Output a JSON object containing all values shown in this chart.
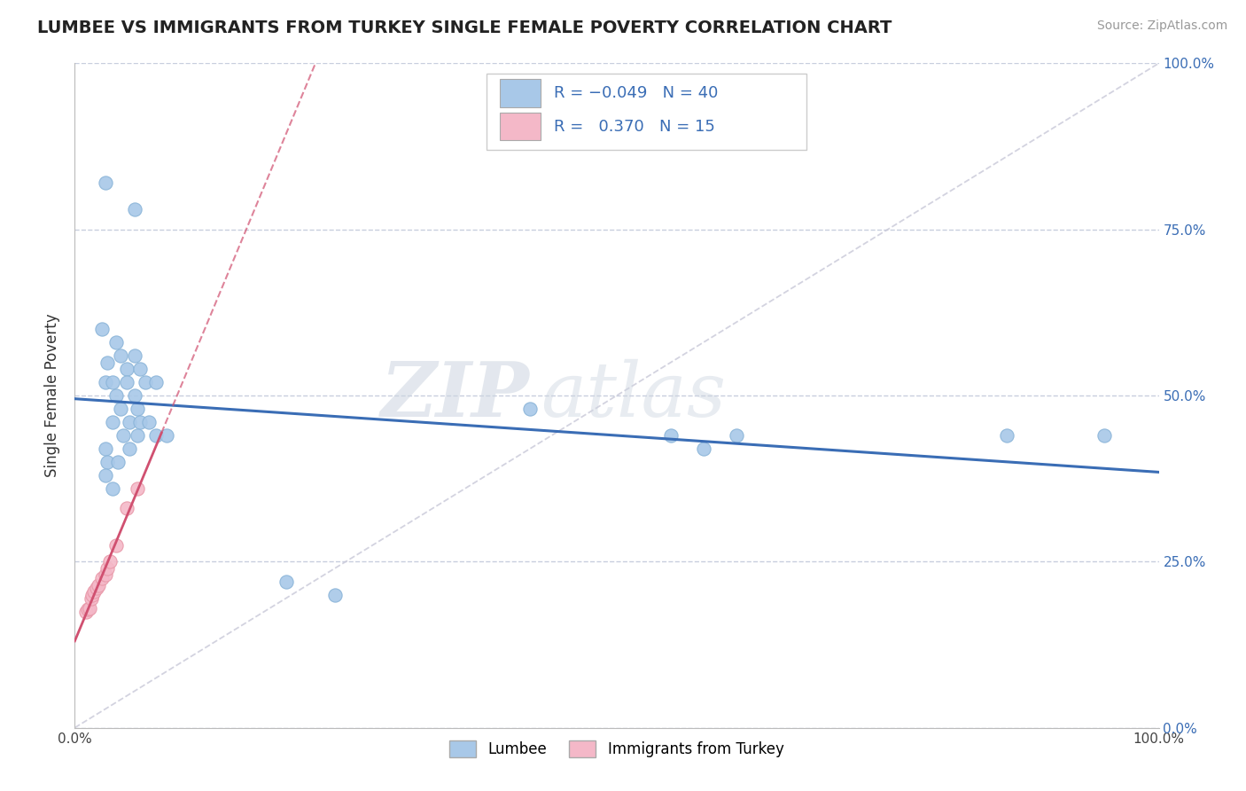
{
  "title": "LUMBEE VS IMMIGRANTS FROM TURKEY SINGLE FEMALE POVERTY CORRELATION CHART",
  "source": "Source: ZipAtlas.com",
  "ylabel": "Single Female Poverty",
  "legend_lumbee_R": "-0.049",
  "legend_lumbee_N": "40",
  "legend_turkey_R": "0.370",
  "legend_turkey_N": "15",
  "watermark_zip": "ZIP",
  "watermark_atlas": "atlas",
  "lumbee_color": "#a8c8e8",
  "lumbee_edge_color": "#8ab4d8",
  "lumbee_line_color": "#3a6db5",
  "turkey_color": "#f4b8c8",
  "turkey_edge_color": "#e898a8",
  "turkey_line_color": "#d05070",
  "diag_line_color": "#c8c8d8",
  "background_color": "#ffffff",
  "grid_color": "#c8cede",
  "lumbee_scatter": [
    [
      0.028,
      0.82
    ],
    [
      0.055,
      0.78
    ],
    [
      0.025,
      0.6
    ],
    [
      0.03,
      0.55
    ],
    [
      0.038,
      0.58
    ],
    [
      0.028,
      0.52
    ],
    [
      0.042,
      0.56
    ],
    [
      0.055,
      0.56
    ],
    [
      0.048,
      0.54
    ],
    [
      0.06,
      0.54
    ],
    [
      0.035,
      0.52
    ],
    [
      0.048,
      0.52
    ],
    [
      0.065,
      0.52
    ],
    [
      0.075,
      0.52
    ],
    [
      0.038,
      0.5
    ],
    [
      0.055,
      0.5
    ],
    [
      0.042,
      0.48
    ],
    [
      0.058,
      0.48
    ],
    [
      0.035,
      0.46
    ],
    [
      0.05,
      0.46
    ],
    [
      0.06,
      0.46
    ],
    [
      0.068,
      0.46
    ],
    [
      0.045,
      0.44
    ],
    [
      0.058,
      0.44
    ],
    [
      0.075,
      0.44
    ],
    [
      0.085,
      0.44
    ],
    [
      0.028,
      0.42
    ],
    [
      0.05,
      0.42
    ],
    [
      0.03,
      0.4
    ],
    [
      0.04,
      0.4
    ],
    [
      0.028,
      0.38
    ],
    [
      0.035,
      0.36
    ],
    [
      0.195,
      0.22
    ],
    [
      0.24,
      0.2
    ],
    [
      0.42,
      0.48
    ],
    [
      0.55,
      0.44
    ],
    [
      0.58,
      0.42
    ],
    [
      0.61,
      0.44
    ],
    [
      0.86,
      0.44
    ],
    [
      0.95,
      0.44
    ]
  ],
  "turkey_scatter": [
    [
      0.01,
      0.175
    ],
    [
      0.012,
      0.178
    ],
    [
      0.014,
      0.18
    ],
    [
      0.015,
      0.195
    ],
    [
      0.016,
      0.2
    ],
    [
      0.018,
      0.205
    ],
    [
      0.02,
      0.21
    ],
    [
      0.022,
      0.215
    ],
    [
      0.025,
      0.225
    ],
    [
      0.028,
      0.23
    ],
    [
      0.03,
      0.24
    ],
    [
      0.032,
      0.25
    ],
    [
      0.038,
      0.275
    ],
    [
      0.048,
      0.33
    ],
    [
      0.058,
      0.36
    ]
  ],
  "xlim": [
    0.0,
    1.0
  ],
  "ylim": [
    0.0,
    1.0
  ],
  "ytick_vals": [
    0.0,
    0.25,
    0.5,
    0.75,
    1.0
  ],
  "ytick_labels_right": [
    "0.0%",
    "25.0%",
    "50.0%",
    "75.0%",
    "100.0%"
  ],
  "xtick_vals": [
    0.0,
    1.0
  ],
  "xtick_labels": [
    "0.0%",
    "100.0%"
  ],
  "marker_size": 120,
  "title_fontsize": 14,
  "axis_label_fontsize": 11,
  "legend_fontsize": 13
}
